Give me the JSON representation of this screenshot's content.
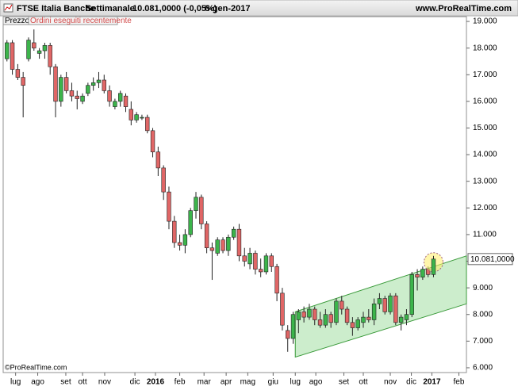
{
  "header": {
    "title": "FTSE Italia Banche",
    "period": "Settimanale",
    "price": "10.081,0000 (-0,05%)",
    "date": "6-gen-2017",
    "site": "www.ProRealTime.com"
  },
  "panel": {
    "label": "Prezzo",
    "orders": "Ordini eseguiti recentemente",
    "copyright": "©ProRealTime.com"
  },
  "chart_data": {
    "type": "candlestick",
    "x": [
      0,
      1,
      2,
      3,
      4,
      5,
      6,
      7,
      8,
      9,
      10,
      11,
      12,
      13,
      14,
      15,
      16,
      17,
      18,
      19,
      20,
      21,
      22,
      23,
      24,
      25,
      26,
      27,
      28,
      29,
      30,
      31,
      32,
      33,
      34,
      35,
      36,
      37,
      38,
      39,
      40,
      41,
      42,
      43,
      44,
      45,
      46,
      47,
      48,
      49,
      50,
      51,
      52,
      53,
      54,
      55,
      56,
      57,
      58,
      59,
      60,
      61,
      62,
      63,
      64,
      65,
      66,
      67,
      68,
      69,
      70,
      71,
      72,
      73,
      74,
      75,
      76,
      77,
      78,
      79
    ],
    "series": [
      {
        "up_color": "#3cb44b",
        "down_color": "#e06666",
        "open": [
          17.6,
          18.2,
          17.2,
          16.9,
          17.6,
          18.2,
          17.8,
          17.9,
          18.1,
          17.3,
          16.0,
          16.9,
          16.4,
          16.2,
          16.0,
          16.3,
          16.6,
          16.7,
          16.8,
          16.4,
          15.8,
          16.0,
          16.2,
          15.7,
          15.3,
          15.4,
          15.4,
          14.9,
          14.1,
          13.5,
          12.6,
          11.5,
          10.7,
          10.6,
          11.0,
          11.9,
          12.4,
          11.4,
          10.5,
          10.3,
          10.8,
          10.4,
          10.9,
          11.2,
          10.2,
          9.9,
          10.3,
          9.7,
          9.6,
          10.2,
          9.8,
          8.8,
          7.4,
          7.1,
          7.8,
          8.1,
          7.9,
          8.2,
          7.8,
          7.6,
          8.0,
          7.7,
          8.5,
          8.2,
          7.7,
          7.5,
          7.7,
          7.9,
          7.8,
          8.4,
          8.6,
          8.1,
          8.7,
          7.7,
          7.8,
          8.0,
          9.5,
          9.4,
          9.7,
          9.5
        ],
        "high": [
          18.3,
          18.3,
          17.4,
          17.1,
          18.4,
          18.7,
          18.0,
          18.2,
          18.2,
          17.4,
          17.0,
          17.1,
          16.7,
          16.4,
          16.3,
          16.7,
          16.9,
          17.1,
          17.0,
          16.6,
          16.1,
          16.4,
          16.3,
          16.0,
          15.6,
          15.5,
          15.5,
          15.0,
          14.3,
          13.6,
          12.8,
          11.7,
          11.0,
          11.2,
          12.0,
          12.6,
          12.5,
          11.5,
          10.7,
          10.9,
          10.9,
          11.0,
          11.3,
          11.4,
          10.5,
          10.5,
          10.4,
          10.1,
          10.3,
          10.3,
          9.9,
          9.0,
          7.6,
          8.1,
          8.2,
          8.3,
          8.4,
          8.3,
          8.1,
          8.2,
          8.1,
          8.6,
          8.7,
          8.3,
          7.9,
          7.9,
          8.1,
          8.2,
          8.6,
          8.8,
          8.7,
          8.8,
          8.8,
          8.0,
          8.2,
          9.6,
          9.7,
          9.8,
          9.8,
          10.2
        ],
        "low": [
          17.5,
          17.0,
          16.8,
          15.4,
          17.5,
          17.9,
          17.6,
          17.6,
          17.0,
          15.4,
          15.8,
          16.3,
          16.0,
          15.7,
          15.9,
          16.2,
          16.4,
          16.5,
          16.3,
          15.8,
          15.7,
          15.8,
          15.6,
          15.1,
          15.2,
          15.3,
          14.8,
          13.9,
          13.2,
          12.3,
          11.2,
          10.5,
          10.4,
          10.3,
          10.9,
          11.6,
          11.2,
          10.3,
          9.3,
          10.2,
          10.3,
          10.2,
          10.8,
          10.0,
          9.8,
          9.7,
          9.5,
          9.4,
          9.5,
          9.6,
          8.5,
          7.4,
          6.6,
          6.9,
          7.3,
          7.7,
          7.8,
          7.6,
          7.5,
          7.5,
          7.5,
          7.6,
          8.0,
          7.6,
          7.2,
          7.4,
          7.5,
          7.7,
          7.6,
          8.2,
          8.0,
          8.0,
          7.6,
          7.4,
          7.6,
          7.9,
          8.9,
          9.3,
          9.4,
          9.4
        ],
        "close": [
          18.2,
          17.2,
          16.9,
          16.6,
          18.3,
          18.0,
          17.9,
          18.1,
          17.3,
          16.0,
          16.9,
          16.4,
          16.2,
          16.1,
          16.2,
          16.6,
          16.7,
          16.8,
          16.4,
          16.0,
          16.0,
          16.3,
          15.8,
          15.3,
          15.5,
          15.4,
          14.9,
          14.1,
          13.5,
          12.6,
          11.5,
          10.7,
          10.6,
          11.0,
          11.9,
          12.4,
          11.4,
          10.5,
          10.4,
          10.8,
          10.4,
          10.9,
          11.2,
          10.2,
          10.0,
          10.3,
          9.7,
          9.6,
          10.2,
          9.8,
          8.8,
          7.6,
          7.1,
          8.0,
          8.1,
          7.9,
          8.2,
          7.8,
          7.6,
          8.0,
          7.7,
          8.5,
          8.2,
          7.7,
          7.5,
          7.8,
          7.9,
          7.8,
          8.4,
          8.6,
          8.1,
          8.7,
          7.7,
          7.9,
          8.0,
          9.5,
          9.4,
          9.7,
          9.5,
          10.081
        ]
      }
    ],
    "last_value_label": "10.081,0000",
    "channel": {
      "color": "#8fd88f",
      "x": [
        53.4,
        85.1
      ],
      "upper": [
        8.1,
        10.2
      ],
      "lower": [
        6.4,
        8.4
      ]
    },
    "xlim": [
      -0.7,
      85.1
    ],
    "xticks": [
      {
        "value": 1.6,
        "label": "lug"
      },
      {
        "value": 5.7,
        "label": "ago"
      },
      {
        "value": 10.9,
        "label": "set"
      },
      {
        "value": 14,
        "label": "ott"
      },
      {
        "value": 18.1,
        "label": "nov"
      },
      {
        "value": 23.7,
        "label": "dic"
      },
      {
        "value": 27.5,
        "label": "2016"
      },
      {
        "value": 32,
        "label": "feb"
      },
      {
        "value": 36.5,
        "label": "mar"
      },
      {
        "value": 40.6,
        "label": "apr"
      },
      {
        "value": 44.6,
        "label": "mag"
      },
      {
        "value": 49.3,
        "label": "giu"
      },
      {
        "value": 53.4,
        "label": "lug"
      },
      {
        "value": 57.2,
        "label": "ago"
      },
      {
        "value": 62.4,
        "label": "set"
      },
      {
        "value": 66,
        "label": "ott"
      },
      {
        "value": 71,
        "label": "nov"
      },
      {
        "value": 74.9,
        "label": "dic"
      },
      {
        "value": 78.7,
        "label": "2017"
      },
      {
        "value": 83.7,
        "label": "feb"
      }
    ],
    "ylim": [
      5.82,
      19.18
    ],
    "yticks": [
      {
        "value": 6,
        "label": "6.000"
      },
      {
        "value": 7,
        "label": "7.000"
      },
      {
        "value": 8,
        "label": "8.000"
      },
      {
        "value": 9,
        "label": "9.000"
      },
      {
        "value": 10,
        "label": "10.000"
      },
      {
        "value": 11,
        "label": "11.000"
      },
      {
        "value": 12,
        "label": "12.000"
      },
      {
        "value": 13,
        "label": "13.000"
      },
      {
        "value": 14,
        "label": "14.000"
      },
      {
        "value": 15,
        "label": "15.000"
      },
      {
        "value": 16,
        "label": "16.000"
      },
      {
        "value": 17,
        "label": "17.000"
      },
      {
        "value": 18,
        "label": "18.000"
      },
      {
        "value": 19,
        "label": "19.000"
      }
    ],
    "grid": false
  }
}
